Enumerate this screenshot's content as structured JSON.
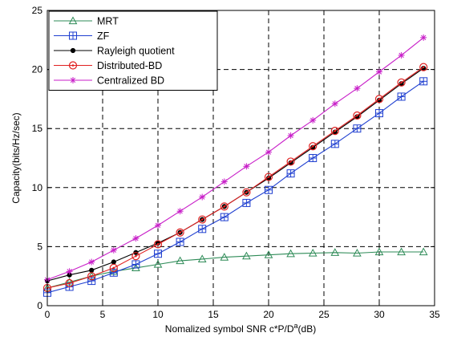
{
  "chart_data": {
    "type": "line",
    "xlabel_prefix": "Nomalized symbol SNR c*P/D",
    "xlabel_sup": "a",
    "xlabel_suffix": "(dB)",
    "ylabel": "Capacity(bits/Hz/sec)",
    "xlim": [
      0,
      35
    ],
    "ylim": [
      0,
      25
    ],
    "xticks": [
      0,
      5,
      10,
      15,
      20,
      25,
      30,
      35
    ],
    "yticks": [
      0,
      5,
      10,
      15,
      20,
      25
    ],
    "grid": true,
    "grid_style": "dashed",
    "legend_position": "top-left",
    "x": [
      0,
      2,
      4,
      6,
      8,
      10,
      12,
      14,
      16,
      18,
      20,
      22,
      24,
      26,
      28,
      30,
      32,
      34
    ],
    "series": [
      {
        "name": "MRT",
        "color": "#2e8b57",
        "marker": "triangle",
        "values": [
          1.5,
          2.0,
          2.5,
          2.9,
          3.2,
          3.5,
          3.8,
          3.95,
          4.1,
          4.2,
          4.3,
          4.4,
          4.45,
          4.5,
          4.45,
          4.55,
          4.55,
          4.55
        ]
      },
      {
        "name": "ZF",
        "color": "#1f3fd0",
        "marker": "square",
        "values": [
          1.1,
          1.6,
          2.1,
          2.8,
          3.5,
          4.4,
          5.4,
          6.5,
          7.5,
          8.7,
          9.8,
          11.2,
          12.5,
          13.7,
          15.0,
          16.3,
          17.7,
          19.0
        ]
      },
      {
        "name": "Rayleigh quotient",
        "color": "#000000",
        "marker": "dot",
        "values": [
          2.1,
          2.6,
          3.0,
          3.7,
          4.5,
          5.3,
          6.2,
          7.3,
          8.4,
          9.6,
          10.8,
          12.1,
          13.4,
          14.7,
          16.0,
          17.4,
          18.8,
          20.1
        ]
      },
      {
        "name": "Distributed-BD",
        "color": "#e02020",
        "marker": "circle",
        "values": [
          1.5,
          1.9,
          2.5,
          3.2,
          4.2,
          5.2,
          6.2,
          7.3,
          8.4,
          9.6,
          10.9,
          12.2,
          13.5,
          14.8,
          16.1,
          17.5,
          18.9,
          20.2
        ]
      },
      {
        "name": "Centralized BD",
        "color": "#c81ec8",
        "marker": "star",
        "values": [
          2.2,
          2.9,
          3.7,
          4.7,
          5.7,
          6.8,
          8.0,
          9.2,
          10.5,
          11.8,
          13.0,
          14.4,
          15.7,
          17.1,
          18.4,
          19.8,
          21.2,
          22.7
        ]
      }
    ]
  }
}
